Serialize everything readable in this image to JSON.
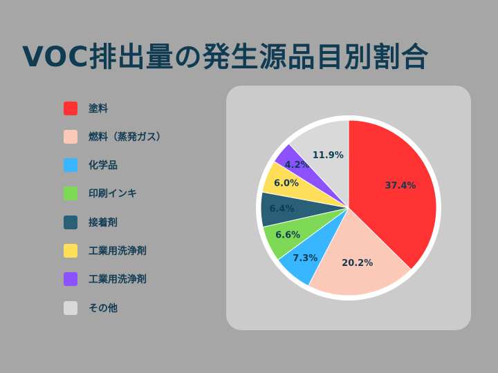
{
  "title": "VOC排出量の発生源品目別割合",
  "chart_data": {
    "type": "pie",
    "title": "VOC排出量の発生源品目別割合",
    "start_angle_deg": 0,
    "direction": "clockwise",
    "slices": [
      {
        "label": "塗料",
        "value": 37.4,
        "display": "37.4%",
        "color": "#ff3333"
      },
      {
        "label": "燃料（蒸発ガス）",
        "value": 20.2,
        "display": "20.2%",
        "color": "#fcc8b8"
      },
      {
        "label": "化学品",
        "value": 7.3,
        "display": "7.3%",
        "color": "#38b6ff"
      },
      {
        "label": "印刷インキ",
        "value": 6.6,
        "display": "6.6%",
        "color": "#7ed957"
      },
      {
        "label": "接着剤",
        "value": 6.4,
        "display": "6.4%",
        "color": "#2a5f78"
      },
      {
        "label": "工業用洗浄剤",
        "value": 6.0,
        "display": "6.0%",
        "color": "#ffde59"
      },
      {
        "label": "工業用洗浄剤",
        "value": 4.2,
        "display": "4.2%",
        "color": "#8c52ff"
      },
      {
        "label": "その他",
        "value": 11.9,
        "display": "11.9%",
        "color": "#d9d9d9"
      }
    ],
    "legend_placement": "left"
  }
}
